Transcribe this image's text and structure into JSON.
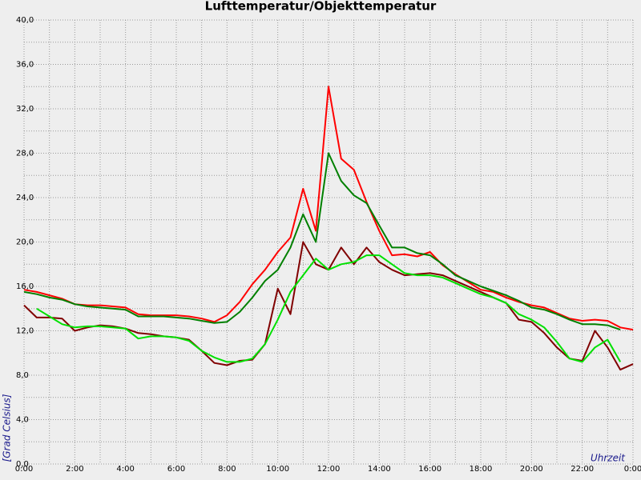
{
  "chart_data": {
    "type": "line",
    "title": "Lufttemperatur/Objekttemperatur",
    "xlabel": "Uhrzeit",
    "ylabel": "[Grad Celsius]",
    "x": [
      0,
      0.5,
      1,
      1.5,
      2,
      2.5,
      3,
      3.5,
      4,
      4.5,
      5,
      5.5,
      6,
      6.5,
      7,
      7.5,
      8,
      8.5,
      9,
      9.5,
      10,
      10.5,
      11,
      11.5,
      12,
      12.5,
      13,
      13.5,
      14,
      14.5,
      15,
      15.5,
      16,
      16.5,
      17,
      17.5,
      18,
      18.5,
      19,
      19.5,
      20,
      20.5,
      21,
      21.5,
      22,
      22.5,
      23,
      23.5,
      24
    ],
    "series": [
      {
        "color": "#ff0000",
        "values": [
          15.7,
          15.5,
          15.2,
          14.9,
          14.4,
          14.3,
          14.3,
          14.2,
          14.1,
          13.5,
          13.4,
          13.4,
          13.4,
          13.3,
          13.1,
          12.8,
          13.4,
          14.6,
          16.2,
          17.5,
          19.1,
          20.4,
          24.8,
          21,
          34,
          27.5,
          26.5,
          23.6,
          21,
          18.8,
          18.9,
          18.7,
          19.1,
          17.9,
          17.1,
          16.4,
          15.7,
          15.5,
          15,
          14.6,
          14.3,
          14.1,
          13.6,
          13.1,
          12.9,
          13,
          12.9,
          12.3,
          12.1
        ]
      },
      {
        "color": "#800000",
        "values": [
          14.3,
          13.2,
          13.2,
          13.1,
          12,
          12.3,
          12.5,
          12.4,
          12.2,
          11.8,
          11.7,
          11.5,
          11.4,
          11.2,
          10.2,
          9.1,
          8.9,
          9.3,
          9.4,
          10.8,
          15.8,
          13.5,
          20,
          18,
          17.5,
          19.5,
          18,
          19.5,
          18.2,
          17.5,
          17,
          17.1,
          17.2,
          17,
          16.5,
          16,
          15.5,
          15,
          14.5,
          13,
          12.8,
          11.8,
          10.5,
          9.5,
          9.3,
          12,
          10.5,
          8.5,
          9
        ]
      },
      {
        "color": "#008000",
        "values": [
          15.5,
          15.3,
          15,
          14.8,
          14.4,
          14.2,
          14.1,
          14,
          13.9,
          13.3,
          13.3,
          13.3,
          13.2,
          13.1,
          12.9,
          12.7,
          12.8,
          13.7,
          15,
          16.5,
          17.5,
          19.5,
          22.5,
          20,
          28,
          25.5,
          24.2,
          23.5,
          21.5,
          19.5,
          19.5,
          19,
          18.8,
          18,
          17,
          16.5,
          16,
          15.6,
          15.2,
          14.7,
          14.1,
          13.9,
          13.5,
          13,
          12.6,
          12.6,
          12.5,
          12.1,
          null
        ]
      },
      {
        "color": "#00e000",
        "values": [
          null,
          14,
          13.3,
          12.6,
          12.3,
          12.4,
          12.4,
          12.3,
          12.2,
          11.3,
          11.5,
          11.5,
          11.4,
          11.1,
          10.2,
          9.6,
          9.2,
          9.2,
          9.5,
          10.8,
          13,
          15.5,
          17,
          18.5,
          17.5,
          18,
          18.2,
          18.8,
          18.8,
          18,
          17.2,
          17,
          17,
          16.8,
          16.3,
          15.8,
          15.3,
          15,
          14.5,
          13.5,
          13,
          12.3,
          11,
          9.5,
          9.2,
          10.5,
          11.2,
          9.2,
          null
        ]
      }
    ],
    "xlim": [
      0,
      24
    ],
    "xticks": [
      {
        "value": 0,
        "label": "0:00"
      },
      {
        "value": 2,
        "label": "2:00"
      },
      {
        "value": 4,
        "label": "4:00"
      },
      {
        "value": 6,
        "label": "6:00"
      },
      {
        "value": 8,
        "label": "8:00"
      },
      {
        "value": 10,
        "label": "10:00"
      },
      {
        "value": 12,
        "label": "12:00"
      },
      {
        "value": 14,
        "label": "14:00"
      },
      {
        "value": 16,
        "label": "16:00"
      },
      {
        "value": 18,
        "label": "18:00"
      },
      {
        "value": 20,
        "label": "20:00"
      },
      {
        "value": 22,
        "label": "22:00"
      },
      {
        "value": 24,
        "label": "0:00"
      }
    ],
    "xminorticks": [
      1,
      3,
      5,
      7,
      9,
      11,
      13,
      15,
      17,
      19,
      21,
      23
    ],
    "ylim": [
      0,
      40
    ],
    "yticks": [
      {
        "value": 0,
        "label": "0,0"
      },
      {
        "value": 4,
        "label": "4,0"
      },
      {
        "value": 8,
        "label": "8,0"
      },
      {
        "value": 12,
        "label": "12,0"
      },
      {
        "value": 16,
        "label": "16,0"
      },
      {
        "value": 20,
        "label": "20,0"
      },
      {
        "value": 24,
        "label": "24,0"
      },
      {
        "value": 28,
        "label": "28,0"
      },
      {
        "value": 32,
        "label": "32,0"
      },
      {
        "value": 36,
        "label": "36,0"
      },
      {
        "value": 40,
        "label": "40,0"
      }
    ],
    "yminorticks": [
      2,
      6,
      10,
      14,
      18,
      22,
      26,
      30,
      34,
      38
    ],
    "grid": true
  }
}
